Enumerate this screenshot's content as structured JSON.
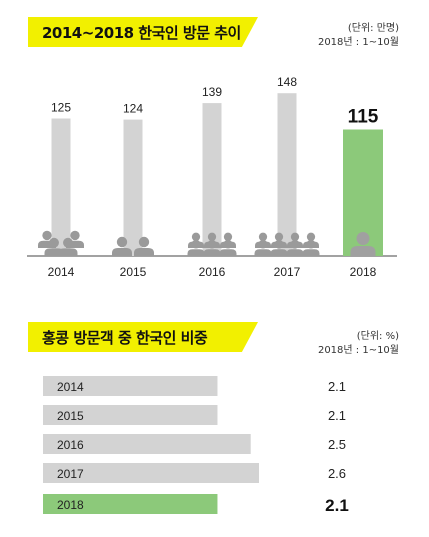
{
  "chart_data": [
    {
      "type": "bar",
      "title": "2014~2018 한국인 방문 추이",
      "unit_label": "(단위: 만명)",
      "period_note": "2018년 : 1~10월",
      "categories": [
        "2014",
        "2015",
        "2016",
        "2017",
        "2018"
      ],
      "values": [
        125,
        124,
        139,
        148,
        115
      ],
      "value_labels": [
        "125",
        "124",
        "139",
        "148",
        "115"
      ],
      "highlight_index": 4,
      "people_icon_counts": [
        4,
        2,
        6,
        8,
        1
      ],
      "ylim": [
        0,
        160
      ],
      "colors": {
        "bar": "#d3d3d3",
        "highlight": "#8cc97a",
        "icon": "#9a9a9a",
        "icon_highlight": "#a0a0a0"
      }
    },
    {
      "type": "bar",
      "orientation": "horizontal",
      "title": "홍콩 방문객 중 한국인 비중",
      "unit_label": "(단위: %)",
      "period_note": "2018년 : 1~10월",
      "categories": [
        "2014",
        "2015",
        "2016",
        "2017",
        "2018"
      ],
      "values": [
        2.1,
        2.1,
        2.5,
        2.6,
        2.1
      ],
      "value_labels": [
        "2.1",
        "2.1",
        "2.5",
        "2.6",
        "2.1"
      ],
      "highlight_index": 4,
      "xlim": [
        0,
        3.0
      ],
      "colors": {
        "bar": "#d3d3d3",
        "highlight": "#8cc97a"
      }
    }
  ]
}
